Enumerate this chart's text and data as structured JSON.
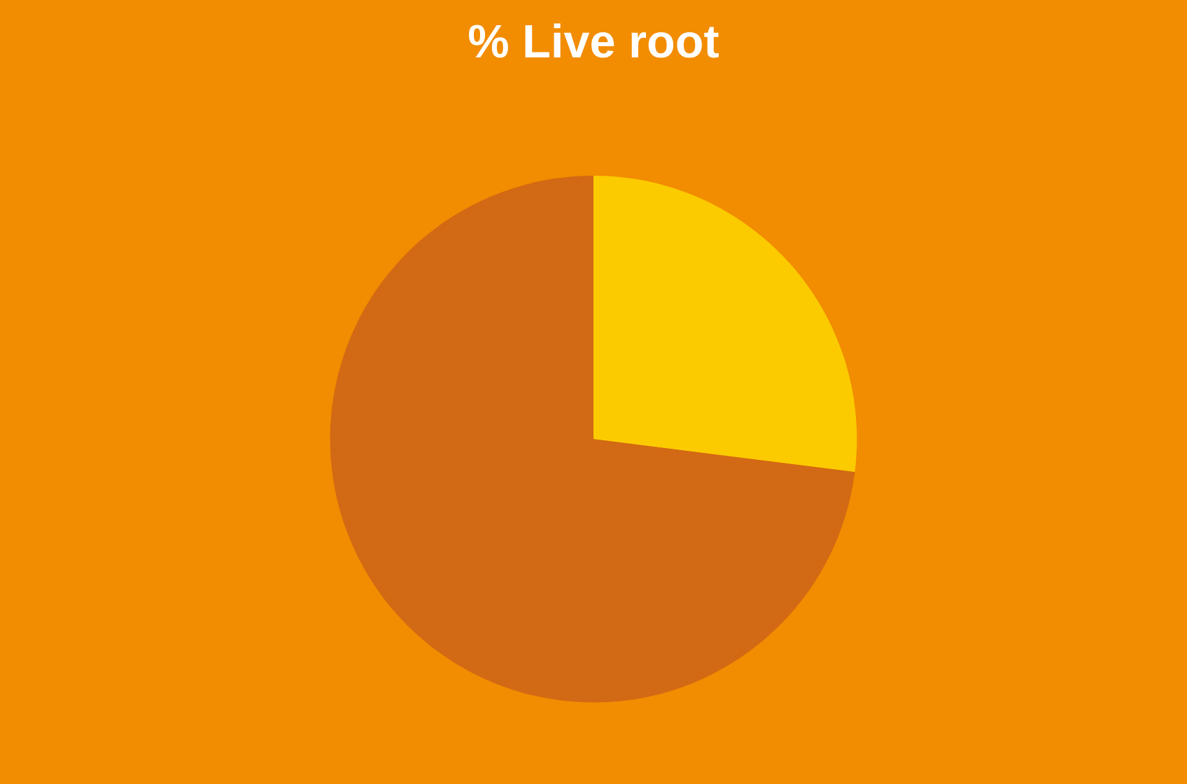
{
  "chart_data": {
    "type": "pie",
    "title": "% Live root",
    "categories": [
      null,
      null
    ],
    "values": [
      27,
      73
    ],
    "colors": [
      "#fbcb00",
      "#d26914"
    ],
    "legend": false
  }
}
